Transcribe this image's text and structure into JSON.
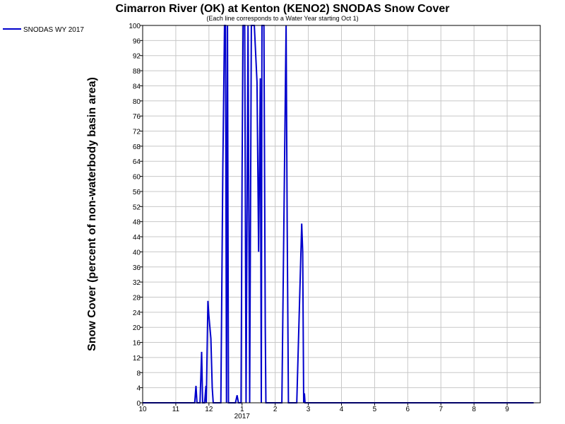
{
  "chart_data": {
    "type": "line",
    "title": "Cimarron River (OK) at Kenton (KENO2) SNODAS Snow Cover",
    "subtitle": "(Each line corresponds to a Water Year starting Oct 1)",
    "xlabel": "",
    "ylabel": "Snow Cover (percent of non-waterbody basin area)",
    "ylim": [
      0,
      100
    ],
    "xlim": [
      0,
      12
    ],
    "y_ticks": [
      0,
      4,
      8,
      12,
      16,
      20,
      24,
      28,
      32,
      36,
      40,
      44,
      48,
      52,
      56,
      60,
      64,
      68,
      72,
      76,
      80,
      84,
      88,
      92,
      96,
      100
    ],
    "x_ticks": [
      {
        "x": 0,
        "label": "10"
      },
      {
        "x": 1,
        "label": "11"
      },
      {
        "x": 2,
        "label": "12"
      },
      {
        "x": 3,
        "label": "1"
      },
      {
        "x": 4,
        "label": "2"
      },
      {
        "x": 5,
        "label": "3"
      },
      {
        "x": 6,
        "label": "4"
      },
      {
        "x": 7,
        "label": "5"
      },
      {
        "x": 8,
        "label": "6"
      },
      {
        "x": 9,
        "label": "7"
      },
      {
        "x": 10,
        "label": "8"
      },
      {
        "x": 11,
        "label": "9"
      }
    ],
    "x_year_label": {
      "x": 3,
      "label": "2017"
    },
    "grid": true,
    "legend_position": "top-left",
    "series": [
      {
        "name": "SNODAS WY 2017",
        "color": "#0000cc",
        "x": [
          0,
          1.45,
          1.57,
          1.61,
          1.64,
          1.73,
          1.78,
          1.81,
          1.84,
          1.87,
          1.91,
          1.92,
          1.97,
          2.0,
          2.03,
          2.06,
          2.1,
          2.13,
          2.16,
          2.2,
          2.23,
          2.27,
          2.36,
          2.42,
          2.47,
          2.5,
          2.53,
          2.56,
          2.59,
          2.62,
          2.66,
          2.7,
          2.74,
          2.77,
          2.8,
          2.85,
          2.89,
          2.92,
          2.95,
          2.97,
          3.0,
          3.03,
          3.08,
          3.12,
          3.18,
          3.23,
          3.28,
          3.3,
          3.37,
          3.45,
          3.5,
          3.55,
          3.58,
          3.6,
          3.63,
          3.66,
          3.7,
          3.72,
          3.75,
          3.78,
          3.8,
          3.85,
          3.9,
          3.92,
          3.95,
          4.0,
          4.05,
          4.1,
          4.2,
          4.33,
          4.36,
          4.4,
          4.43,
          4.47,
          4.5,
          4.55,
          4.6,
          4.65,
          4.8,
          4.83,
          4.86,
          4.88,
          4.9,
          4.93,
          4.96,
          5.0,
          5.05,
          5.5,
          5.9,
          11.8
        ],
        "y": [
          0,
          0,
          0,
          4.5,
          0,
          0,
          13.5,
          0,
          0,
          0,
          4.5,
          0,
          27,
          23,
          20,
          17,
          4,
          0,
          0,
          0,
          0,
          0,
          0,
          62,
          100,
          100,
          0,
          100,
          0,
          0,
          0,
          0,
          0,
          0,
          0,
          2,
          0,
          0,
          0,
          0,
          62,
          100,
          100,
          0,
          100,
          0,
          100,
          100,
          100,
          85,
          40,
          86,
          0,
          100,
          100,
          100,
          20,
          0,
          0,
          0,
          0,
          0,
          0,
          0,
          0,
          0,
          0,
          0,
          0,
          100,
          48,
          0,
          0,
          0,
          0,
          0,
          0,
          0,
          47.5,
          40,
          0,
          2.5,
          0,
          0,
          0,
          0,
          0,
          0,
          0,
          0
        ]
      }
    ]
  }
}
